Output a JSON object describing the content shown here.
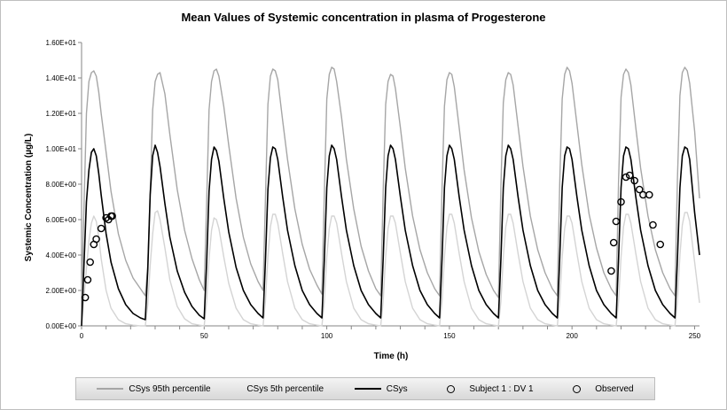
{
  "chart_data": {
    "type": "line",
    "title": "Mean Values of Systemic concentration in plasma of Progesterone",
    "xlabel": "Time (h)",
    "ylabel": "Systemic Concentration (µg/L)",
    "xlim": [
      0,
      252
    ],
    "ylim": [
      0,
      16
    ],
    "xticks": [
      0,
      50,
      100,
      150,
      200,
      250
    ],
    "yticks": [
      0,
      2,
      4,
      6,
      8,
      10,
      12,
      14,
      16
    ],
    "ytick_labels": [
      "0.00E+00",
      "2.00E+00",
      "4.00E+00",
      "6.00E+00",
      "8.00E+00",
      "1.00E+01",
      "1.20E+01",
      "1.40E+01",
      "1.60E+01"
    ],
    "xtick_labels": [
      "0",
      "50",
      "100",
      "150",
      "200",
      "250"
    ],
    "grid": false,
    "legend_position": "bottom",
    "series": [
      {
        "name": "CSys 95th percentile",
        "kind": "line",
        "color": "#a6a6a6",
        "x": [
          0,
          2,
          3,
          4,
          5,
          6,
          7,
          8,
          10,
          12,
          15,
          18,
          21,
          24,
          26,
          27,
          28,
          29,
          30,
          31,
          32,
          34,
          36,
          39,
          42,
          45,
          48,
          50,
          51,
          52,
          53,
          54,
          55,
          56,
          58,
          60,
          63,
          66,
          69,
          72,
          74,
          75,
          76,
          77,
          78,
          79,
          80,
          82,
          84,
          87,
          90,
          93,
          96,
          98,
          99,
          100,
          101,
          102,
          103,
          104,
          106,
          108,
          111,
          114,
          117,
          120,
          122,
          123,
          124,
          125,
          126,
          127,
          128,
          130,
          132,
          135,
          138,
          141,
          144,
          146,
          147,
          148,
          149,
          150,
          151,
          152,
          154,
          156,
          159,
          162,
          165,
          168,
          170,
          171,
          172,
          173,
          174,
          175,
          176,
          178,
          180,
          183,
          186,
          189,
          192,
          194,
          195,
          196,
          197,
          198,
          199,
          200,
          202,
          204,
          207,
          210,
          213,
          216,
          218,
          219,
          220,
          221,
          222,
          223,
          224,
          226,
          228,
          231,
          234,
          237,
          240,
          242,
          243,
          244,
          245,
          246,
          247,
          248,
          250,
          252
        ],
        "values": [
          1.5,
          12.0,
          13.8,
          14.3,
          14.4,
          14.1,
          13.2,
          12.0,
          9.8,
          7.6,
          5.2,
          3.7,
          2.7,
          2.1,
          1.7,
          3.4,
          7.5,
          12.2,
          13.8,
          14.2,
          14.3,
          13.1,
          10.8,
          7.7,
          5.4,
          3.8,
          2.6,
          2.0,
          7.0,
          12.2,
          13.8,
          14.4,
          14.5,
          14.1,
          12.4,
          10.2,
          7.2,
          5.0,
          3.5,
          2.5,
          2.0,
          7.2,
          12.5,
          14.1,
          14.5,
          14.4,
          13.9,
          11.6,
          9.4,
          6.6,
          4.6,
          3.2,
          2.3,
          1.8,
          7.4,
          12.8,
          14.2,
          14.6,
          14.5,
          13.8,
          11.8,
          9.4,
          6.6,
          4.5,
          3.1,
          2.1,
          1.7,
          7.6,
          12.5,
          13.8,
          14.2,
          14.1,
          13.4,
          11.2,
          8.9,
          6.2,
          4.3,
          3.0,
          2.1,
          1.7,
          7.8,
          12.4,
          13.9,
          14.3,
          14.2,
          13.5,
          11.2,
          8.8,
          6.1,
          4.2,
          2.9,
          2.0,
          1.6,
          7.9,
          12.6,
          13.9,
          14.3,
          14.2,
          13.6,
          11.3,
          9.0,
          6.2,
          4.3,
          3.0,
          2.1,
          1.7,
          8.0,
          12.8,
          14.2,
          14.6,
          14.4,
          13.7,
          11.4,
          9.1,
          6.3,
          4.4,
          3.0,
          2.1,
          1.7,
          8.2,
          12.9,
          14.2,
          14.5,
          14.3,
          13.6,
          11.2,
          8.9,
          6.2,
          4.3,
          3.0,
          2.1,
          1.7,
          8.3,
          13.0,
          14.3,
          14.6,
          14.4,
          13.7,
          11.0,
          7.2
        ]
      },
      {
        "name": "CSys 5th percentile",
        "kind": "line",
        "color": "#d4d4d4",
        "x": [
          0,
          2,
          3,
          4,
          5,
          6,
          7,
          8,
          10,
          12,
          15,
          18,
          21,
          24,
          26,
          27,
          28,
          29,
          30,
          31,
          32,
          34,
          36,
          39,
          42,
          45,
          48,
          50,
          51,
          52,
          53,
          54,
          55,
          56,
          58,
          60,
          63,
          66,
          69,
          72,
          74,
          75,
          76,
          77,
          78,
          79,
          80,
          82,
          84,
          87,
          90,
          93,
          96,
          98,
          99,
          100,
          101,
          102,
          103,
          104,
          106,
          108,
          111,
          114,
          117,
          120,
          122,
          123,
          124,
          125,
          126,
          127,
          128,
          130,
          132,
          135,
          138,
          141,
          144,
          146,
          147,
          148,
          149,
          150,
          151,
          152,
          154,
          156,
          159,
          162,
          165,
          168,
          170,
          171,
          172,
          173,
          174,
          175,
          176,
          178,
          180,
          183,
          186,
          189,
          192,
          194,
          195,
          196,
          197,
          198,
          199,
          200,
          202,
          204,
          207,
          210,
          213,
          216,
          218,
          219,
          220,
          221,
          222,
          223,
          224,
          226,
          228,
          231,
          234,
          237,
          240,
          242,
          243,
          244,
          245,
          246,
          247,
          248,
          250,
          252
        ],
        "values": [
          0.0,
          3.2,
          4.8,
          5.8,
          6.2,
          5.9,
          5.0,
          3.8,
          2.0,
          1.0,
          0.35,
          0.12,
          0.04,
          0.0,
          0.0,
          1.2,
          3.4,
          5.2,
          6.4,
          6.5,
          6.0,
          4.4,
          2.6,
          1.1,
          0.4,
          0.12,
          0.04,
          0.0,
          1.4,
          3.8,
          5.4,
          6.1,
          6.0,
          5.5,
          3.9,
          2.4,
          1.0,
          0.35,
          0.12,
          0.04,
          0.0,
          1.4,
          3.9,
          5.6,
          6.3,
          6.3,
          5.8,
          4.1,
          2.5,
          1.0,
          0.35,
          0.12,
          0.04,
          0.0,
          1.4,
          3.9,
          5.5,
          6.2,
          6.2,
          5.8,
          4.1,
          2.5,
          1.0,
          0.35,
          0.12,
          0.04,
          0.0,
          1.4,
          3.9,
          5.5,
          6.2,
          6.2,
          5.8,
          4.1,
          2.5,
          1.0,
          0.35,
          0.12,
          0.04,
          0.0,
          1.4,
          3.9,
          5.6,
          6.3,
          6.3,
          5.8,
          4.1,
          2.5,
          1.0,
          0.35,
          0.12,
          0.04,
          0.0,
          1.4,
          3.9,
          5.6,
          6.3,
          6.3,
          5.8,
          4.1,
          2.5,
          1.0,
          0.35,
          0.12,
          0.04,
          0.0,
          1.4,
          3.9,
          5.5,
          6.2,
          6.2,
          5.8,
          4.1,
          2.5,
          1.0,
          0.35,
          0.12,
          0.04,
          0.0,
          1.4,
          3.9,
          5.6,
          6.3,
          6.3,
          5.8,
          4.1,
          2.5,
          1.0,
          0.35,
          0.12,
          0.04,
          0.0,
          1.4,
          4.0,
          5.7,
          6.4,
          6.4,
          5.9,
          3.6,
          1.3
        ]
      },
      {
        "name": "CSys",
        "kind": "line",
        "color": "#000000",
        "x": [
          0,
          2,
          3,
          4,
          5,
          6,
          7,
          8,
          10,
          12,
          15,
          18,
          21,
          24,
          26,
          27,
          28,
          29,
          30,
          31,
          32,
          34,
          36,
          39,
          42,
          45,
          48,
          50,
          51,
          52,
          53,
          54,
          55,
          56,
          58,
          60,
          63,
          66,
          69,
          72,
          74,
          75,
          76,
          77,
          78,
          79,
          80,
          82,
          84,
          87,
          90,
          93,
          96,
          98,
          99,
          100,
          101,
          102,
          103,
          104,
          106,
          108,
          111,
          114,
          117,
          120,
          122,
          123,
          124,
          125,
          126,
          127,
          128,
          130,
          132,
          135,
          138,
          141,
          144,
          146,
          147,
          148,
          149,
          150,
          151,
          152,
          154,
          156,
          159,
          162,
          165,
          168,
          170,
          171,
          172,
          173,
          174,
          175,
          176,
          178,
          180,
          183,
          186,
          189,
          192,
          194,
          195,
          196,
          197,
          198,
          199,
          200,
          202,
          204,
          207,
          210,
          213,
          216,
          218,
          219,
          220,
          221,
          222,
          223,
          224,
          226,
          228,
          231,
          234,
          237,
          240,
          242,
          243,
          244,
          245,
          246,
          247,
          248,
          250,
          252
        ],
        "values": [
          0.0,
          7.0,
          8.8,
          9.8,
          10.0,
          9.6,
          8.6,
          7.4,
          5.2,
          3.6,
          2.1,
          1.2,
          0.7,
          0.45,
          0.35,
          3.2,
          7.4,
          9.6,
          10.2,
          9.8,
          9.0,
          6.9,
          5.0,
          3.1,
          1.9,
          1.1,
          0.6,
          0.4,
          3.6,
          7.6,
          9.4,
          10.1,
          9.9,
          9.3,
          7.2,
          5.3,
          3.3,
          2.0,
          1.2,
          0.7,
          0.45,
          3.7,
          7.7,
          9.5,
          10.1,
          10.0,
          9.4,
          7.3,
          5.4,
          3.4,
          2.0,
          1.2,
          0.7,
          0.45,
          3.7,
          7.8,
          9.6,
          10.2,
          10.0,
          9.4,
          7.3,
          5.4,
          3.4,
          2.0,
          1.2,
          0.7,
          0.45,
          3.8,
          7.8,
          9.6,
          10.2,
          10.0,
          9.4,
          7.3,
          5.4,
          3.4,
          2.0,
          1.2,
          0.7,
          0.45,
          3.8,
          7.8,
          9.6,
          10.2,
          10.0,
          9.4,
          7.3,
          5.4,
          3.4,
          2.0,
          1.2,
          0.7,
          0.45,
          3.8,
          7.8,
          9.6,
          10.2,
          10.0,
          9.4,
          7.3,
          5.4,
          3.4,
          2.0,
          1.2,
          0.7,
          0.45,
          3.8,
          7.8,
          9.6,
          10.1,
          10.0,
          9.4,
          7.3,
          5.4,
          3.4,
          2.0,
          1.2,
          0.7,
          0.45,
          3.8,
          7.8,
          9.6,
          10.1,
          10.0,
          9.4,
          7.3,
          5.4,
          3.4,
          2.0,
          1.2,
          0.7,
          0.45,
          3.8,
          7.8,
          9.6,
          10.1,
          10.0,
          9.4,
          6.4,
          4.0
        ]
      },
      {
        "name": "Subject 1 : DV 1",
        "kind": "marker",
        "color": "#000000",
        "x": [
          1.5,
          2.5,
          3.5,
          5,
          6,
          8,
          10,
          11,
          12
        ],
        "values": [
          1.6,
          2.6,
          3.6,
          4.6,
          4.9,
          5.5,
          6.1,
          6.0,
          6.2
        ]
      },
      {
        "name": "Observed",
        "kind": "marker",
        "color": "#000000",
        "x": [
          12.5,
          216,
          217,
          218,
          220,
          222,
          223.5,
          225.5,
          227.5,
          229,
          231.5,
          233,
          236
        ],
        "values": [
          6.2,
          3.1,
          4.7,
          5.9,
          7.0,
          8.4,
          8.5,
          8.2,
          7.7,
          7.4,
          7.4,
          5.7,
          4.6
        ]
      }
    ]
  }
}
